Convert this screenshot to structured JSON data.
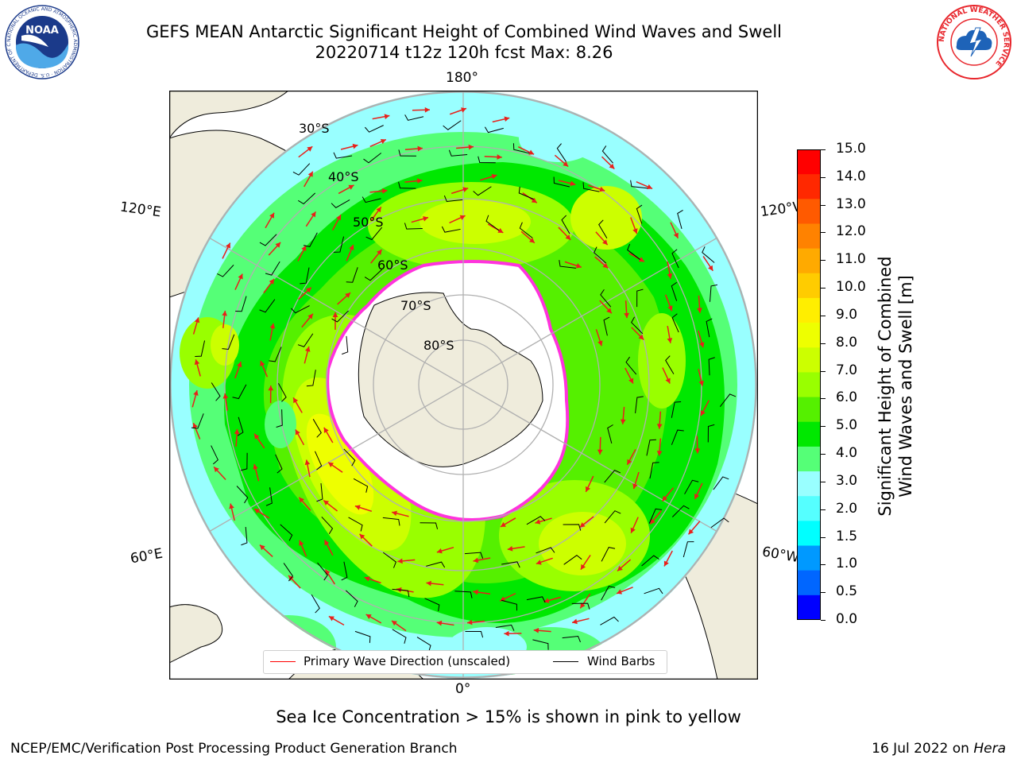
{
  "title": {
    "line1": "GEFS MEAN Antarctic Significant Height of Combined Wind Waves and Swell",
    "line2": "20220714 t12z 120h fcst   Max: 8.26"
  },
  "logos": {
    "noaa": {
      "text": "NOAA",
      "ring_text": "NATIONAL OCEANIC AND ATMOSPHERIC ADMINISTRATION · U.S. DEPARTMENT OF COMMERCE",
      "colors": {
        "dark": "#1b3a8a",
        "light": "#4fa9e8"
      }
    },
    "nws": {
      "ring_text": "NATIONAL WEATHER SERVICE",
      "colors": {
        "ring": "#e8262c",
        "blue": "#1e63b8"
      }
    }
  },
  "map": {
    "projection": "south polar stereographic",
    "lon_labels": {
      "top": "180°",
      "bottom": "0°",
      "left_upper": "120°E",
      "left_lower": "60°E",
      "right_upper": "120°W",
      "right_lower": "60°W"
    },
    "lat_labels": [
      "30°S",
      "40°S",
      "50°S",
      "60°S",
      "70°S",
      "80°S"
    ],
    "colors": {
      "land": "#efecdc",
      "ocean_low": "#99ffff",
      "sea_ice_edge": "#ff33dd",
      "frame": "#000000",
      "grid": "#b0b0b0"
    },
    "arrow_color": "#e8201a",
    "barb_color": "#000000"
  },
  "colorbar": {
    "ticks": [
      "15.0",
      "14.0",
      "13.0",
      "12.0",
      "11.0",
      "10.0",
      "9.0",
      "8.0",
      "7.0",
      "6.0",
      "5.0",
      "4.0",
      "3.0",
      "2.0",
      "1.5",
      "1.0",
      "0.5",
      "0.0"
    ],
    "colors_top_to_bottom": [
      "#ff0000",
      "#ff2800",
      "#ff5a00",
      "#ff8200",
      "#ffaa00",
      "#ffcc00",
      "#ffee00",
      "#eeff00",
      "#ccff00",
      "#99ff00",
      "#55f000",
      "#00e800",
      "#55ff77",
      "#99ffff",
      "#55ffff",
      "#00ffff",
      "#0099ff",
      "#0066ff",
      "#0000ff"
    ],
    "label_line1": "Significant Height of Combined",
    "label_line2": "Wind Waves and Swell [m]"
  },
  "legend": {
    "wave_label": "Primary Wave Direction (unscaled)",
    "wave_color": "#ff0000",
    "barb_label": "Wind Barbs",
    "barb_color": "#000000"
  },
  "ice_note": "Sea Ice Concentration > 15% is shown in pink to yellow",
  "footer": {
    "left": "NCEP/EMC/Verification Post Processing Product Generation Branch",
    "right_date": "16 Jul 2022 on ",
    "right_host": "Hera"
  }
}
